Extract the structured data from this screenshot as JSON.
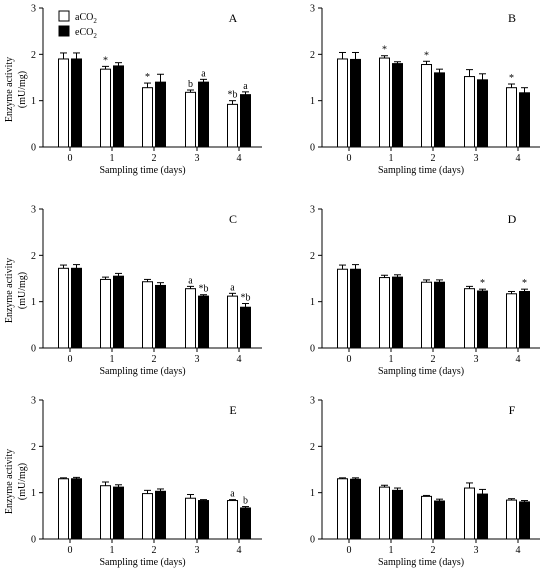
{
  "chart_data": [
    {
      "type": "bar",
      "panel_letter": "A",
      "categories": [
        "0",
        "1",
        "2",
        "3",
        "4"
      ],
      "series": [
        {
          "name": "aCO2",
          "color": "#ffffff",
          "values": [
            1.9,
            1.68,
            1.28,
            1.18,
            0.92
          ],
          "errors": [
            0.13,
            0.06,
            0.1,
            0.05,
            0.08
          ],
          "annotations": [
            "",
            "*",
            "*",
            "b",
            "*b"
          ]
        },
        {
          "name": "eCO2",
          "color": "#000000",
          "values": [
            1.9,
            1.75,
            1.4,
            1.4,
            1.13
          ],
          "errors": [
            0.13,
            0.07,
            0.17,
            0.06,
            0.06
          ],
          "annotations": [
            "",
            "",
            "",
            "a",
            "a"
          ]
        }
      ],
      "ylim": [
        0,
        3
      ],
      "yticks": [
        "0",
        "1",
        "2",
        "3"
      ],
      "ylabel": "Enzyme activity",
      "ylabel_unit": "(mU/mg)",
      "xlabel": "Sampling time (days)",
      "legend": [
        {
          "label_main": "aCO",
          "label_sub": "2",
          "color": "#ffffff"
        },
        {
          "label_main": "eCO",
          "label_sub": "2",
          "color": "#000000"
        }
      ]
    },
    {
      "type": "bar",
      "panel_letter": "B",
      "categories": [
        "0",
        "1",
        "2",
        "3",
        "4"
      ],
      "series": [
        {
          "name": "aCO2",
          "color": "#ffffff",
          "values": [
            1.9,
            1.92,
            1.78,
            1.52,
            1.28
          ],
          "errors": [
            0.14,
            0.05,
            0.07,
            0.15,
            0.08
          ],
          "annotations": [
            "",
            "*",
            "*",
            "",
            "*"
          ]
        },
        {
          "name": "eCO2",
          "color": "#000000",
          "values": [
            1.89,
            1.8,
            1.6,
            1.45,
            1.17
          ],
          "errors": [
            0.15,
            0.04,
            0.08,
            0.13,
            0.11
          ],
          "annotations": [
            "",
            "",
            "",
            "",
            ""
          ]
        }
      ],
      "ylim": [
        0,
        3
      ],
      "yticks": [
        "0",
        "1",
        "2",
        "3"
      ],
      "ylabel": "",
      "ylabel_unit": "",
      "xlabel": "Sampling time (days)"
    },
    {
      "type": "bar",
      "panel_letter": "C",
      "categories": [
        "0",
        "1",
        "2",
        "3",
        "4"
      ],
      "series": [
        {
          "name": "aCO2",
          "color": "#ffffff",
          "values": [
            1.72,
            1.48,
            1.43,
            1.28,
            1.12
          ],
          "errors": [
            0.07,
            0.05,
            0.05,
            0.05,
            0.06
          ],
          "annotations": [
            "",
            "",
            "",
            "a",
            "a"
          ]
        },
        {
          "name": "eCO2",
          "color": "#000000",
          "values": [
            1.72,
            1.55,
            1.35,
            1.12,
            0.88
          ],
          "errors": [
            0.08,
            0.06,
            0.06,
            0.03,
            0.08
          ],
          "annotations": [
            "",
            "",
            "",
            "*b",
            "*b"
          ]
        }
      ],
      "ylim": [
        0,
        3
      ],
      "yticks": [
        "0",
        "1",
        "2",
        "3"
      ],
      "ylabel": "Enzyme activity",
      "ylabel_unit": "(mU/mg)",
      "xlabel": "Sampling time (days)"
    },
    {
      "type": "bar",
      "panel_letter": "D",
      "categories": [
        "0",
        "1",
        "2",
        "3",
        "4"
      ],
      "series": [
        {
          "name": "aCO2",
          "color": "#ffffff",
          "values": [
            1.7,
            1.52,
            1.42,
            1.28,
            1.17
          ],
          "errors": [
            0.09,
            0.05,
            0.05,
            0.05,
            0.05
          ],
          "annotations": [
            "",
            "",
            "",
            "",
            ""
          ]
        },
        {
          "name": "eCO2",
          "color": "#000000",
          "values": [
            1.7,
            1.53,
            1.42,
            1.23,
            1.22
          ],
          "errors": [
            0.1,
            0.05,
            0.05,
            0.04,
            0.05
          ],
          "annotations": [
            "",
            "",
            "",
            "*",
            "*"
          ]
        }
      ],
      "ylim": [
        0,
        3
      ],
      "yticks": [
        "0",
        "1",
        "2",
        "3"
      ],
      "ylabel": "",
      "ylabel_unit": "",
      "xlabel": "Sampling time (days)"
    },
    {
      "type": "bar",
      "panel_letter": "E",
      "categories": [
        "0",
        "1",
        "2",
        "3",
        "4"
      ],
      "series": [
        {
          "name": "aCO2",
          "color": "#ffffff",
          "values": [
            1.3,
            1.15,
            0.98,
            0.88,
            0.83
          ],
          "errors": [
            0.02,
            0.08,
            0.07,
            0.08,
            0.02
          ],
          "annotations": [
            "",
            "",
            "",
            "",
            "a"
          ]
        },
        {
          "name": "eCO2",
          "color": "#000000",
          "values": [
            1.3,
            1.12,
            1.03,
            0.83,
            0.67
          ],
          "errors": [
            0.03,
            0.05,
            0.05,
            0.02,
            0.03
          ],
          "annotations": [
            "",
            "",
            "",
            "",
            "b"
          ]
        }
      ],
      "ylim": [
        0,
        3
      ],
      "yticks": [
        "0",
        "1",
        "2",
        "3"
      ],
      "ylabel": "Enzyme activity",
      "ylabel_unit": "(mU/mg)",
      "xlabel": "Sampling time (days)"
    },
    {
      "type": "bar",
      "panel_letter": "F",
      "categories": [
        "0",
        "1",
        "2",
        "3",
        "4"
      ],
      "series": [
        {
          "name": "aCO2",
          "color": "#ffffff",
          "values": [
            1.3,
            1.12,
            0.92,
            1.1,
            0.84
          ],
          "errors": [
            0.02,
            0.04,
            0.02,
            0.11,
            0.03
          ],
          "annotations": [
            "",
            "",
            "",
            "",
            ""
          ]
        },
        {
          "name": "eCO2",
          "color": "#000000",
          "values": [
            1.29,
            1.05,
            0.82,
            0.97,
            0.8
          ],
          "errors": [
            0.03,
            0.05,
            0.04,
            0.1,
            0.03
          ],
          "annotations": [
            "",
            "",
            "",
            "",
            ""
          ]
        }
      ],
      "ylim": [
        0,
        3
      ],
      "yticks": [
        "0",
        "1",
        "2",
        "3"
      ],
      "ylabel": "",
      "ylabel_unit": "",
      "xlabel": "Sampling time (days)"
    }
  ]
}
